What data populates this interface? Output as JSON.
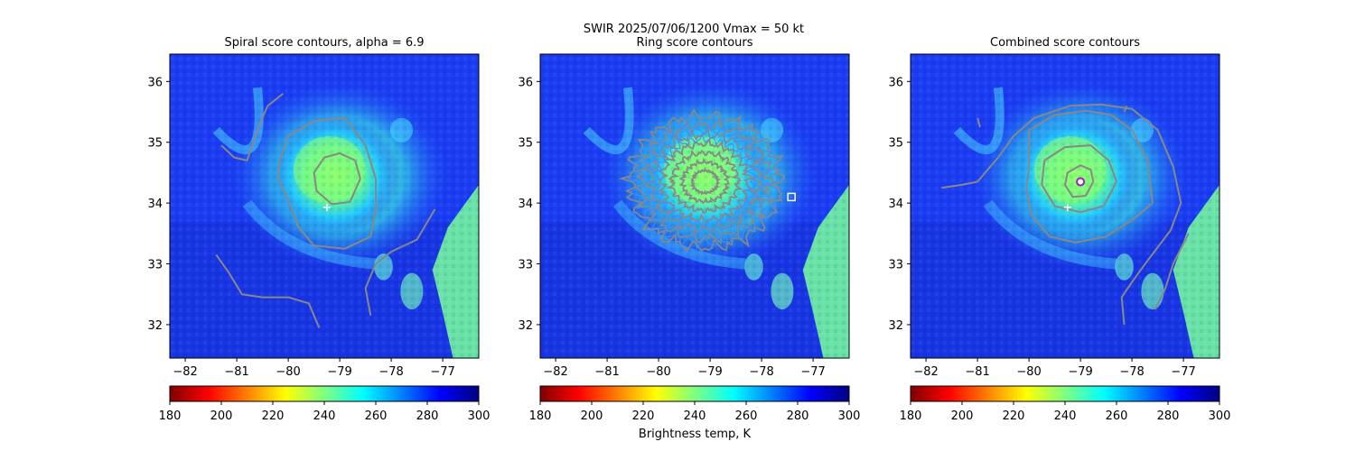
{
  "figure": {
    "suptitle_line1": "SWIR  2025/07/06/1200    Vmax = 50 kt",
    "colorbar_label": "Brightness temp, K"
  },
  "chart_data": [
    {
      "type": "heatmap",
      "title": "Spiral score contours, alpha =  6.9",
      "xlabel": "",
      "ylabel": "",
      "xlim": [
        -82.3,
        -76.3
      ],
      "ylim": [
        31.45,
        36.45
      ],
      "xticks": [
        -82,
        -81,
        -80,
        -79,
        -78,
        -77
      ],
      "yticks": [
        32,
        33,
        34,
        35,
        36
      ],
      "xtick_labels": [
        "−82",
        "−81",
        "−80",
        "−79",
        "−78",
        "−77"
      ],
      "ytick_labels": [
        "32",
        "33",
        "34",
        "35",
        "36"
      ],
      "markers": [
        {
          "kind": "plus",
          "lon": -79.25,
          "lat": 33.93,
          "color": "#ffffff"
        }
      ],
      "contours": [
        {
          "points": [
            [
              -78.6,
              34.4
            ],
            [
              -78.7,
              34.7
            ],
            [
              -79.0,
              34.82
            ],
            [
              -79.3,
              34.75
            ],
            [
              -79.5,
              34.5
            ],
            [
              -79.45,
              34.2
            ],
            [
              -79.15,
              33.98
            ],
            [
              -78.8,
              34.02
            ],
            [
              -78.6,
              34.4
            ]
          ]
        },
        {
          "points": [
            [
              -78.3,
              34.4
            ],
            [
              -78.5,
              34.95
            ],
            [
              -78.9,
              35.4
            ],
            [
              -79.5,
              35.35
            ],
            [
              -80.0,
              35.1
            ],
            [
              -80.15,
              34.75
            ],
            [
              -80.2,
              34.4
            ],
            [
              -80.0,
              34.05
            ],
            [
              -79.8,
              33.6
            ],
            [
              -79.5,
              33.3
            ],
            [
              -78.9,
              33.25
            ],
            [
              -78.4,
              33.45
            ],
            [
              -78.3,
              33.9
            ],
            [
              -78.3,
              34.4
            ]
          ]
        },
        {
          "points": [
            [
              -81.3,
              34.95
            ],
            [
              -81.05,
              34.75
            ],
            [
              -80.8,
              34.7
            ],
            [
              -80.7,
              34.95
            ],
            [
              -80.55,
              35.3
            ],
            [
              -80.4,
              35.6
            ],
            [
              -80.1,
              35.8
            ]
          ]
        },
        {
          "points": [
            [
              -81.4,
              33.15
            ],
            [
              -81.15,
              32.85
            ],
            [
              -80.9,
              32.5
            ],
            [
              -80.5,
              32.45
            ],
            [
              -80.0,
              32.45
            ],
            [
              -79.6,
              32.35
            ],
            [
              -79.5,
              32.15
            ],
            [
              -79.4,
              31.95
            ]
          ]
        },
        {
          "points": [
            [
              -77.15,
              33.9
            ],
            [
              -77.5,
              33.4
            ],
            [
              -78.0,
              33.2
            ],
            [
              -78.3,
              33.0
            ],
            [
              -78.5,
              32.6
            ],
            [
              -78.4,
              32.15
            ]
          ]
        }
      ]
    },
    {
      "type": "heatmap",
      "title": "Ring score contours",
      "xlabel": "",
      "ylabel": "",
      "xlim": [
        -82.3,
        -76.3
      ],
      "ylim": [
        31.45,
        36.45
      ],
      "xticks": [
        -82,
        -81,
        -80,
        -79,
        -78,
        -77
      ],
      "yticks": [
        32,
        33,
        34,
        35,
        36
      ],
      "xtick_labels": [
        "−82",
        "−81",
        "−80",
        "−79",
        "−78",
        "−77"
      ],
      "ytick_labels": [
        "32",
        "33",
        "34",
        "35",
        "36"
      ],
      "markers": [
        {
          "kind": "square",
          "lon": -77.42,
          "lat": 34.1,
          "color": "#ffffff"
        }
      ],
      "ring_region": {
        "center_lon": -79.1,
        "center_lat": 34.35,
        "radius_lon": 1.45,
        "radius_lat": 1.08
      }
    },
    {
      "type": "heatmap",
      "title": "Combined score contours",
      "xlabel": "",
      "ylabel": "",
      "xlim": [
        -82.3,
        -76.3
      ],
      "ylim": [
        31.45,
        36.45
      ],
      "xticks": [
        -82,
        -81,
        -80,
        -79,
        -78,
        -77
      ],
      "yticks": [
        32,
        33,
        34,
        35,
        36
      ],
      "xtick_labels": [
        "−82",
        "−81",
        "−80",
        "−79",
        "−78",
        "−77"
      ],
      "ytick_labels": [
        "32",
        "33",
        "34",
        "35",
        "36"
      ],
      "markers": [
        {
          "kind": "plus",
          "lon": -79.25,
          "lat": 33.93,
          "color": "#ffffff"
        },
        {
          "kind": "circle",
          "lon": -79.0,
          "lat": 34.35,
          "color": "#a020c0"
        }
      ],
      "contours": [
        {
          "points": [
            [
              -78.75,
              34.35
            ],
            [
              -78.8,
              34.55
            ],
            [
              -79.0,
              34.62
            ],
            [
              -79.25,
              34.5
            ],
            [
              -79.3,
              34.3
            ],
            [
              -79.15,
              34.1
            ],
            [
              -78.9,
              34.12
            ],
            [
              -78.75,
              34.35
            ]
          ]
        },
        {
          "points": [
            [
              -78.3,
              34.35
            ],
            [
              -78.45,
              34.7
            ],
            [
              -78.8,
              34.95
            ],
            [
              -79.3,
              34.92
            ],
            [
              -79.7,
              34.7
            ],
            [
              -79.75,
              34.3
            ],
            [
              -79.5,
              33.95
            ],
            [
              -79.0,
              33.85
            ],
            [
              -78.55,
              33.95
            ],
            [
              -78.3,
              34.35
            ]
          ]
        },
        {
          "points": [
            [
              -77.6,
              34.0
            ],
            [
              -77.7,
              34.7
            ],
            [
              -78.0,
              35.2
            ],
            [
              -78.4,
              35.45
            ],
            [
              -78.9,
              35.52
            ],
            [
              -79.5,
              35.45
            ],
            [
              -80.0,
              35.2
            ],
            [
              -80.0,
              34.6
            ],
            [
              -80.05,
              34.2
            ],
            [
              -79.95,
              33.8
            ],
            [
              -79.6,
              33.45
            ],
            [
              -79.1,
              33.35
            ],
            [
              -78.5,
              33.45
            ],
            [
              -77.95,
              33.75
            ],
            [
              -77.6,
              34.0
            ]
          ]
        },
        {
          "points": [
            [
              -81.7,
              34.25
            ],
            [
              -81.3,
              34.3
            ],
            [
              -81.0,
              34.35
            ],
            [
              -80.6,
              34.75
            ],
            [
              -80.3,
              35.1
            ],
            [
              -79.9,
              35.4
            ],
            [
              -79.2,
              35.6
            ],
            [
              -78.6,
              35.62
            ],
            [
              -78.0,
              35.55
            ],
            [
              -77.5,
              35.2
            ],
            [
              -77.2,
              34.6
            ],
            [
              -77.05,
              34.0
            ],
            [
              -77.25,
              33.55
            ],
            [
              -77.7,
              33.05
            ],
            [
              -78.0,
              32.7
            ],
            [
              -78.2,
              32.45
            ],
            [
              -78.15,
              32.0
            ]
          ]
        },
        {
          "points": [
            [
              -81.0,
              35.4
            ],
            [
              -80.95,
              35.25
            ]
          ]
        },
        {
          "points": [
            [
              -78.1,
              35.6
            ],
            [
              -78.15,
              35.5
            ]
          ]
        },
        {
          "points": [
            [
              -76.9,
              33.5
            ],
            [
              -77.2,
              33.0
            ],
            [
              -77.35,
              32.6
            ],
            [
              -77.55,
              32.25
            ]
          ]
        }
      ]
    }
  ],
  "colorbar": {
    "vmin": 180,
    "vmax": 300,
    "ticks": [
      180,
      200,
      220,
      240,
      260,
      280,
      300
    ],
    "tick_labels": [
      "180",
      "200",
      "220",
      "240",
      "260",
      "280",
      "300"
    ],
    "colormap": [
      "#800000",
      "#ff0000",
      "#ff8000",
      "#ffff00",
      "#80ff80",
      "#00ffff",
      "#0080ff",
      "#0000ff",
      "#000080"
    ]
  }
}
